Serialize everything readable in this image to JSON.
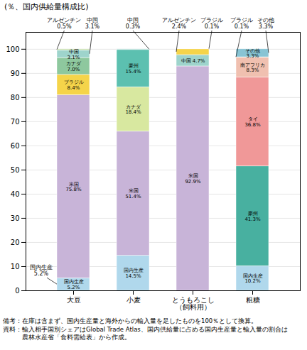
{
  "chart_data": {
    "type": "bar",
    "title": "(％、国内供給量構成比)",
    "categories": [
      "大豆",
      "小麦",
      "とうもろこし\n（飼料用）",
      "粗糖"
    ],
    "stacked": true,
    "data_labels": true,
    "values": [
      [
        5.2,
        75.8,
        8.4,
        7.0,
        3.1,
        0.5
      ],
      [
        14.5,
        51.4,
        18.4,
        15.4,
        0.3
      ],
      [
        92.9,
        4.7,
        2.4,
        0.1
      ],
      [
        10.2,
        41.3,
        36.8,
        8.3,
        0.1,
        3.3
      ]
    ],
    "value_labels": [
      [
        "国内生産\n5.2%",
        "米国\n75.8%",
        "ブラジル\n8.4%",
        "カナダ\n7.0%",
        "中国\n3.1%",
        null
      ],
      [
        "国内生産\n14.5%",
        "米国\n51.4%",
        "カナダ\n18.4%",
        "豪州\n15.4%",
        null
      ],
      [
        "米国\n92.9%",
        "中国 4.7%",
        null,
        null
      ],
      [
        "国内生産\n10.2%",
        "豪州\n41.3%",
        "タイ\n36.8%",
        "南アフリカ\n8.3%",
        null,
        "その他\n3.3%"
      ]
    ],
    "colors": [
      [
        "#b0d8ec",
        "#c8b4d8",
        "#f5d44a",
        "#8ec89e",
        "#9ed4cc",
        "#c8e0b0"
      ],
      [
        "#b0d8ec",
        "#c8b4d8",
        "#d8e8a0",
        "#5cc0b0",
        "#9ed4cc"
      ],
      [
        "#c8b4d8",
        "#9ed4cc",
        "#f5d44a",
        "#e8c8b8"
      ],
      [
        "#b0d8ec",
        "#48b0a0",
        "#f09898",
        "#f0c0b0",
        "#e8e0c0",
        "#88c4d4"
      ]
    ],
    "annotations": [
      {
        "text": "アルゼンチン\n0.5%",
        "category": "大豆",
        "value": 0.5
      },
      {
        "text": "中国\n3.1%",
        "category": "大豆",
        "value": 3.1
      },
      {
        "text": "国内生産\n5.2%",
        "category": "大豆",
        "value": 5.2
      },
      {
        "text": "中国\n0.3%",
        "category": "小麦",
        "value": 0.3
      },
      {
        "text": "アルゼンチン\n2.4%",
        "category": "とうもろこし\n（飼料用）",
        "value": 2.4
      },
      {
        "text": "ブラジル\n0.1%",
        "category": "とうもろこし\n（飼料用）",
        "value": 0.1
      },
      {
        "text": "ブラジル\n0.1%",
        "category": "粗糖",
        "value": 0.1
      },
      {
        "text": "その他\n3.3%",
        "category": "粗糖",
        "value": 3.3
      }
    ],
    "ylim": [
      0,
      107
    ],
    "yticks": [
      0,
      10,
      20,
      30,
      40,
      50,
      60,
      70,
      80,
      90,
      100
    ],
    "grid": true,
    "notes": [
      "備考：在庫は含まず、国内生産量と海外からの輸入量を足したものを100％として換算。",
      "資料：輸入相手国別シェアはGlobal Trade Atlas、国内供給量に占める国内生産量と輸入量の割合は",
      "　　　農林水産省「食料需給表」から作成。"
    ]
  }
}
